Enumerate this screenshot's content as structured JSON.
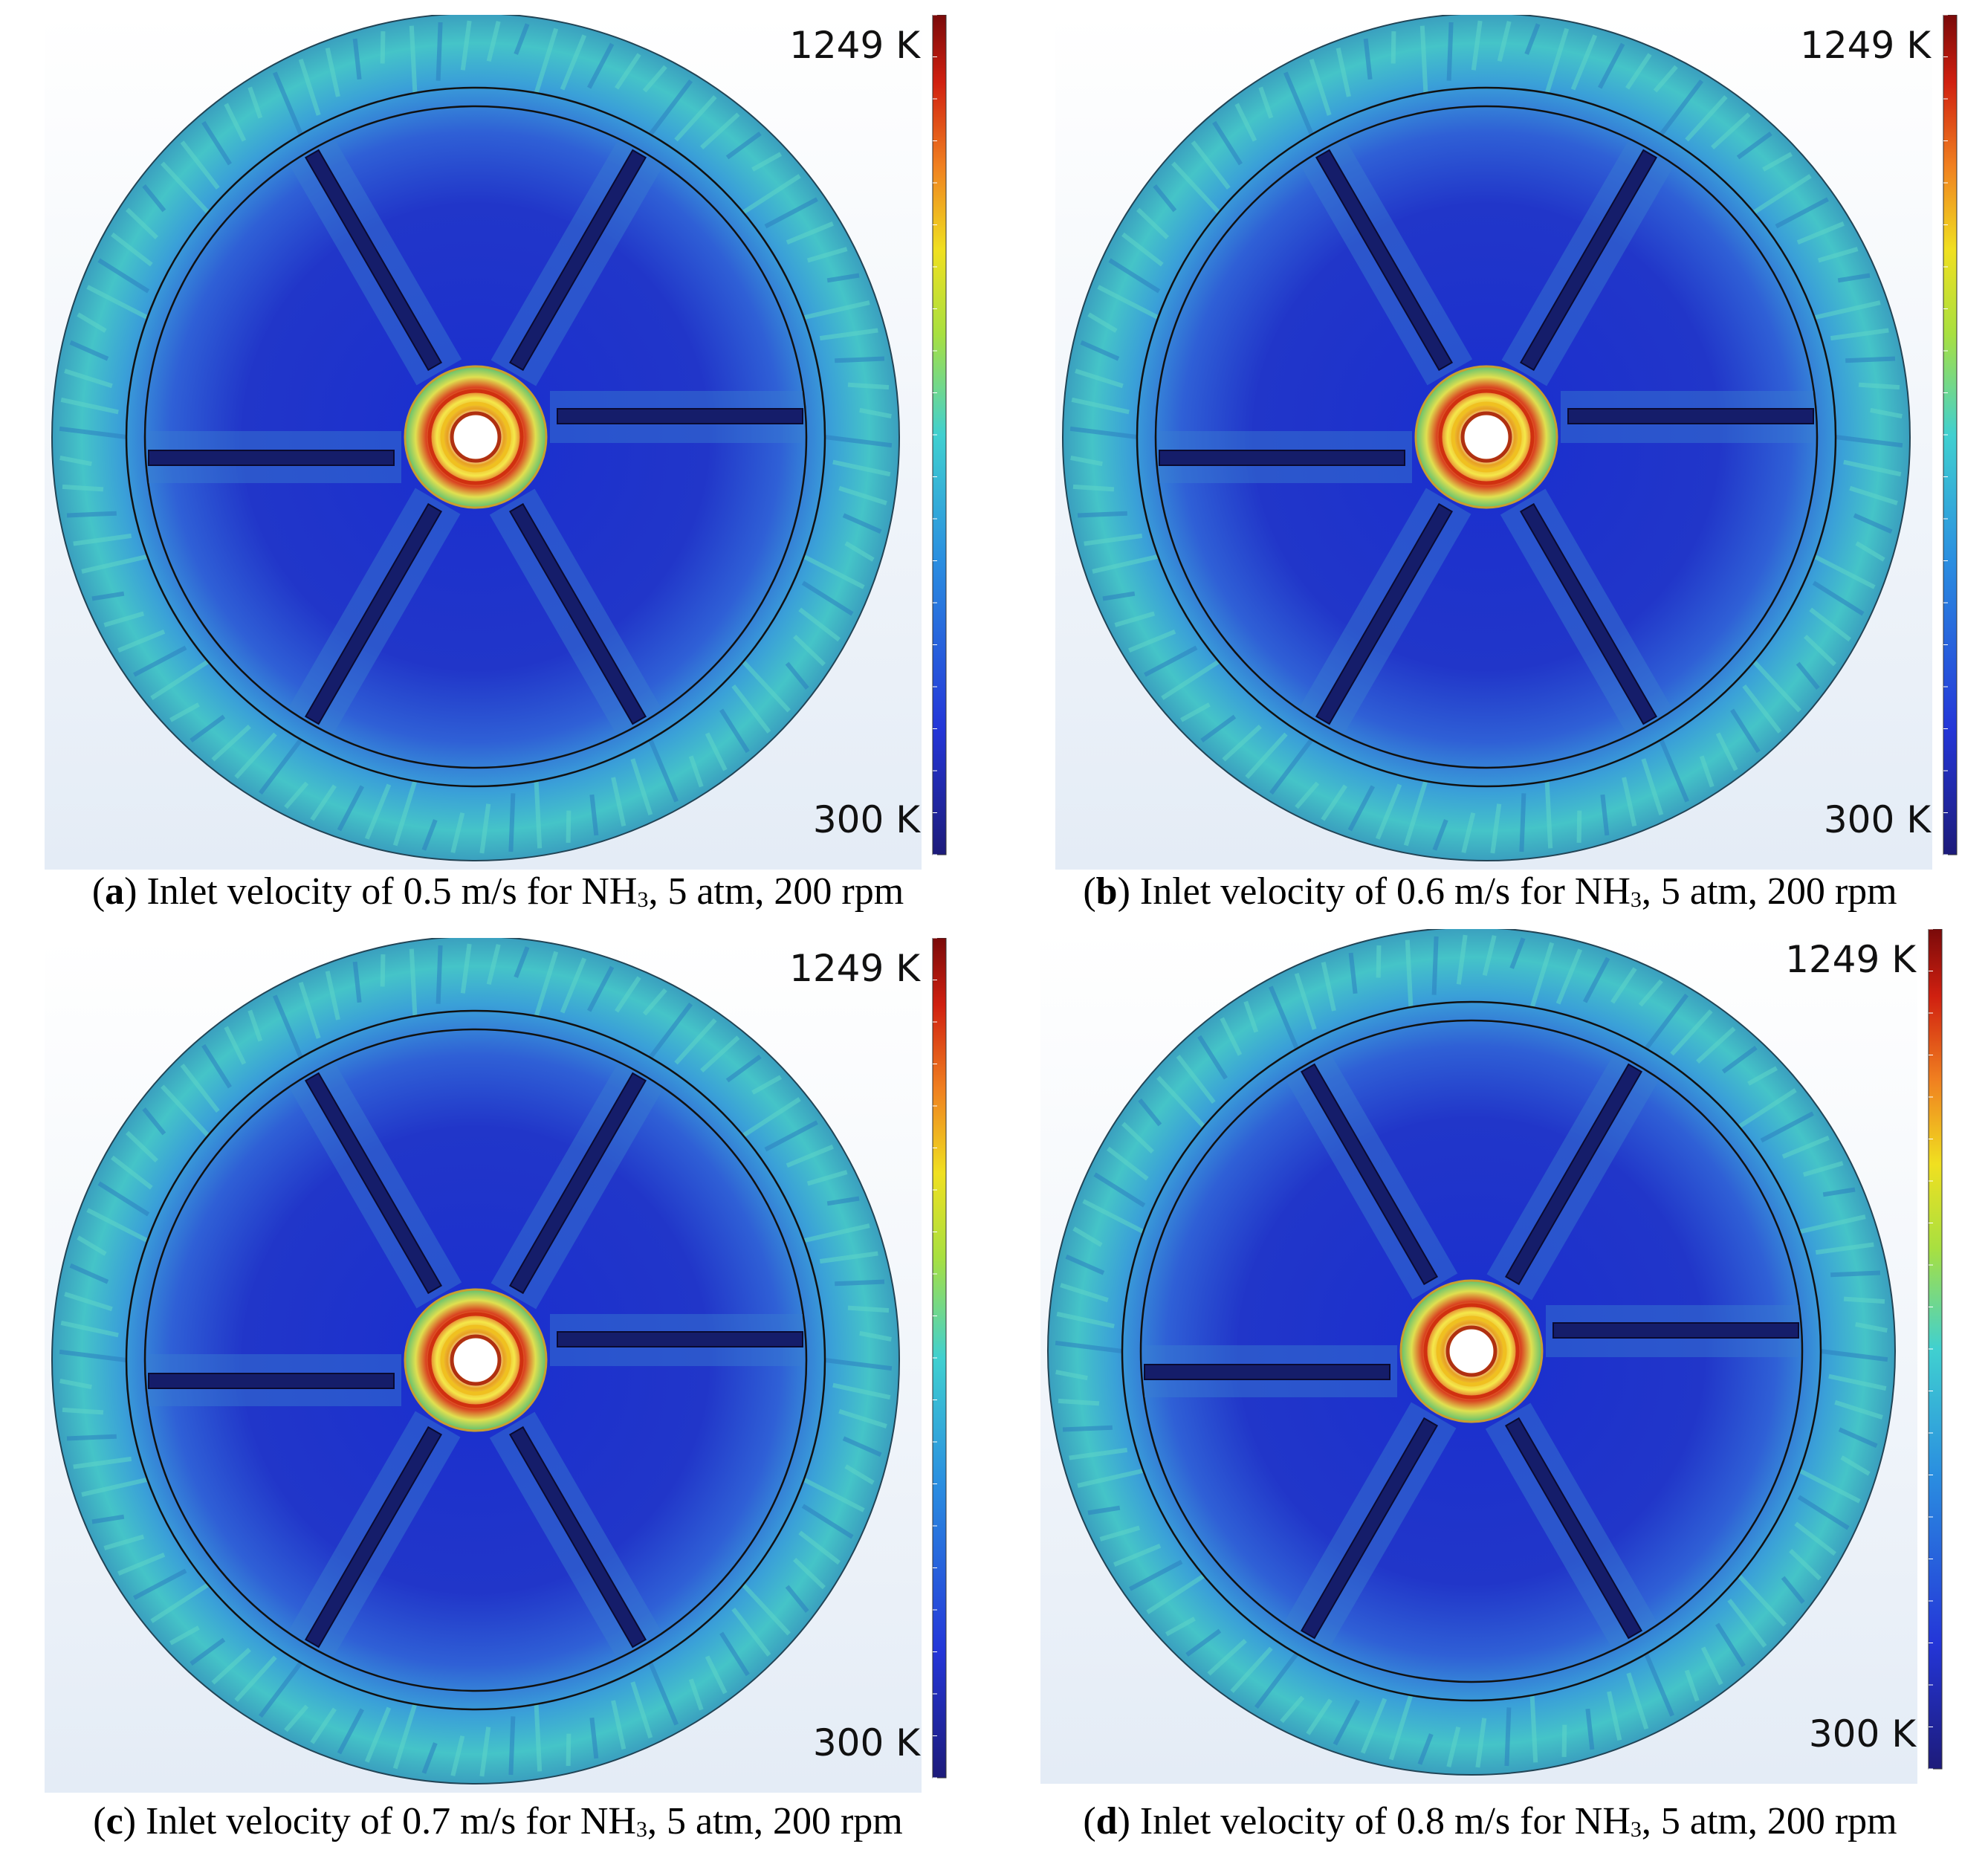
{
  "panels": [
    {
      "prefix": "(",
      "label": "a",
      "caption": ") Inlet velocity of 0.5 m/s for NH",
      "subscript": "3",
      "caption_end": ", 5 atm, 200 rpm",
      "colorbar": {
        "max_label": "1249 K",
        "min_label": "300 K"
      }
    },
    {
      "prefix": "(",
      "label": "b",
      "caption": ") Inlet velocity of 0.6 m/s for NH",
      "subscript": "3",
      "caption_end": ", 5 atm, 200 rpm",
      "colorbar": {
        "max_label": "1249 K",
        "min_label": "300 K"
      }
    },
    {
      "prefix": "(",
      "label": "c",
      "caption": ") Inlet velocity of 0.7 m/s for NH",
      "subscript": "3",
      "caption_end": ", 5 atm, 200 rpm",
      "colorbar": {
        "max_label": "1249 K",
        "min_label": "300 K"
      }
    },
    {
      "prefix": "(",
      "label": "d",
      "caption": ") Inlet velocity of 0.8 m/s for NH",
      "subscript": "3",
      "caption_end": ", 5 atm, 200 rpm",
      "colorbar": {
        "max_label": "1249 K",
        "min_label": "300 K"
      }
    }
  ]
}
